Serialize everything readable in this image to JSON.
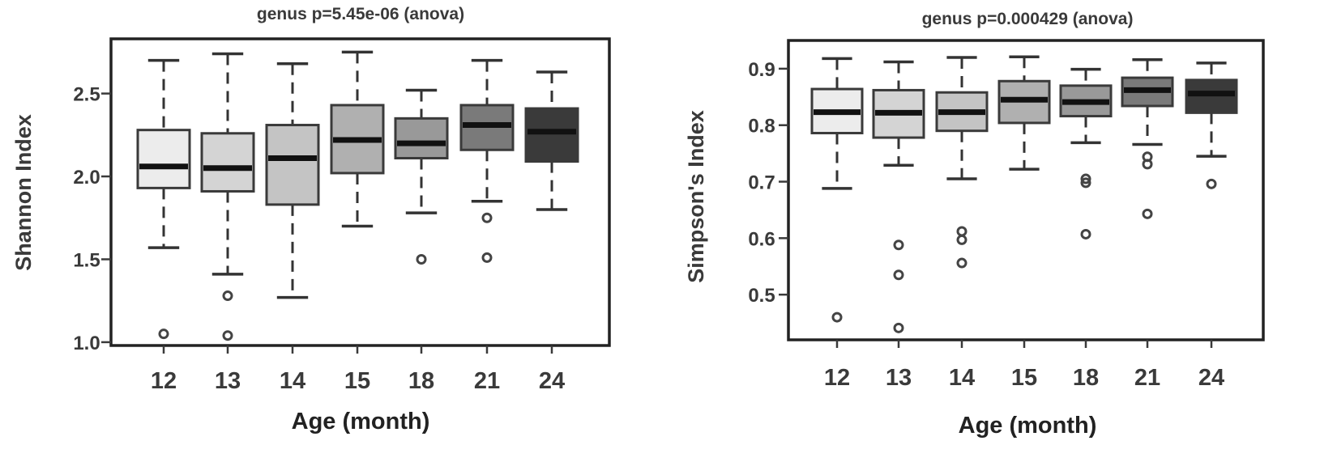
{
  "chart_data": [
    {
      "type": "box",
      "title": "genus p=5.45e-06 (anova)",
      "xlabel": "Age (month)",
      "ylabel": "Shannon Index",
      "ylim": [
        0.98,
        2.83
      ],
      "yticks": [
        "1.0",
        "1.5",
        "2.0",
        "2.5"
      ],
      "ytick_values": [
        1.0,
        1.5,
        2.0,
        2.5
      ],
      "categories": [
        "12",
        "13",
        "14",
        "15",
        "18",
        "21",
        "24"
      ],
      "colors": [
        "#ececec",
        "#d4d4d4",
        "#c4c4c4",
        "#b0b0b0",
        "#999999",
        "#7a7a7a",
        "#3a3a3a"
      ],
      "boxes": [
        {
          "whisker_low": 1.57,
          "q1": 1.93,
          "median": 2.06,
          "q3": 2.28,
          "whisker_high": 2.7,
          "outliers": [
            1.05
          ]
        },
        {
          "whisker_low": 1.41,
          "q1": 1.91,
          "median": 2.05,
          "q3": 2.26,
          "whisker_high": 2.74,
          "outliers": [
            1.28,
            1.04
          ]
        },
        {
          "whisker_low": 1.27,
          "q1": 1.83,
          "median": 2.11,
          "q3": 2.31,
          "whisker_high": 2.68,
          "outliers": []
        },
        {
          "whisker_low": 1.7,
          "q1": 2.02,
          "median": 2.22,
          "q3": 2.43,
          "whisker_high": 2.75,
          "outliers": []
        },
        {
          "whisker_low": 1.78,
          "q1": 2.11,
          "median": 2.2,
          "q3": 2.35,
          "whisker_high": 2.52,
          "outliers": [
            1.5
          ]
        },
        {
          "whisker_low": 1.85,
          "q1": 2.16,
          "median": 2.31,
          "q3": 2.43,
          "whisker_high": 2.7,
          "outliers": [
            1.75,
            1.51
          ]
        },
        {
          "whisker_low": 1.8,
          "q1": 2.09,
          "median": 2.27,
          "q3": 2.41,
          "whisker_high": 2.63,
          "outliers": []
        }
      ]
    },
    {
      "type": "box",
      "title": "genus p=0.000429 (anova)",
      "xlabel": "Age (month)",
      "ylabel": "Simpson's Index",
      "ylim": [
        0.42,
        0.95
      ],
      "yticks": [
        "0.5",
        "0.6",
        "0.7",
        "0.8",
        "0.9"
      ],
      "ytick_values": [
        0.5,
        0.6,
        0.7,
        0.8,
        0.9
      ],
      "categories": [
        "12",
        "13",
        "14",
        "15",
        "18",
        "21",
        "24"
      ],
      "colors": [
        "#ececec",
        "#d4d4d4",
        "#c4c4c4",
        "#b0b0b0",
        "#999999",
        "#7a7a7a",
        "#3a3a3a"
      ],
      "boxes": [
        {
          "whisker_low": 0.688,
          "q1": 0.786,
          "median": 0.823,
          "q3": 0.864,
          "whisker_high": 0.918,
          "outliers": [
            0.46
          ]
        },
        {
          "whisker_low": 0.729,
          "q1": 0.778,
          "median": 0.822,
          "q3": 0.862,
          "whisker_high": 0.912,
          "outliers": [
            0.588,
            0.535,
            0.441
          ]
        },
        {
          "whisker_low": 0.705,
          "q1": 0.79,
          "median": 0.823,
          "q3": 0.858,
          "whisker_high": 0.92,
          "outliers": [
            0.612,
            0.597,
            0.556
          ]
        },
        {
          "whisker_low": 0.722,
          "q1": 0.804,
          "median": 0.845,
          "q3": 0.878,
          "whisker_high": 0.921,
          "outliers": []
        },
        {
          "whisker_low": 0.769,
          "q1": 0.816,
          "median": 0.841,
          "q3": 0.87,
          "whisker_high": 0.899,
          "outliers": [
            0.705,
            0.698,
            0.607
          ]
        },
        {
          "whisker_low": 0.766,
          "q1": 0.834,
          "median": 0.862,
          "q3": 0.884,
          "whisker_high": 0.916,
          "outliers": [
            0.744,
            0.731,
            0.643
          ]
        },
        {
          "whisker_low": 0.745,
          "q1": 0.822,
          "median": 0.856,
          "q3": 0.88,
          "whisker_high": 0.91,
          "outliers": [
            0.696
          ]
        }
      ]
    }
  ]
}
